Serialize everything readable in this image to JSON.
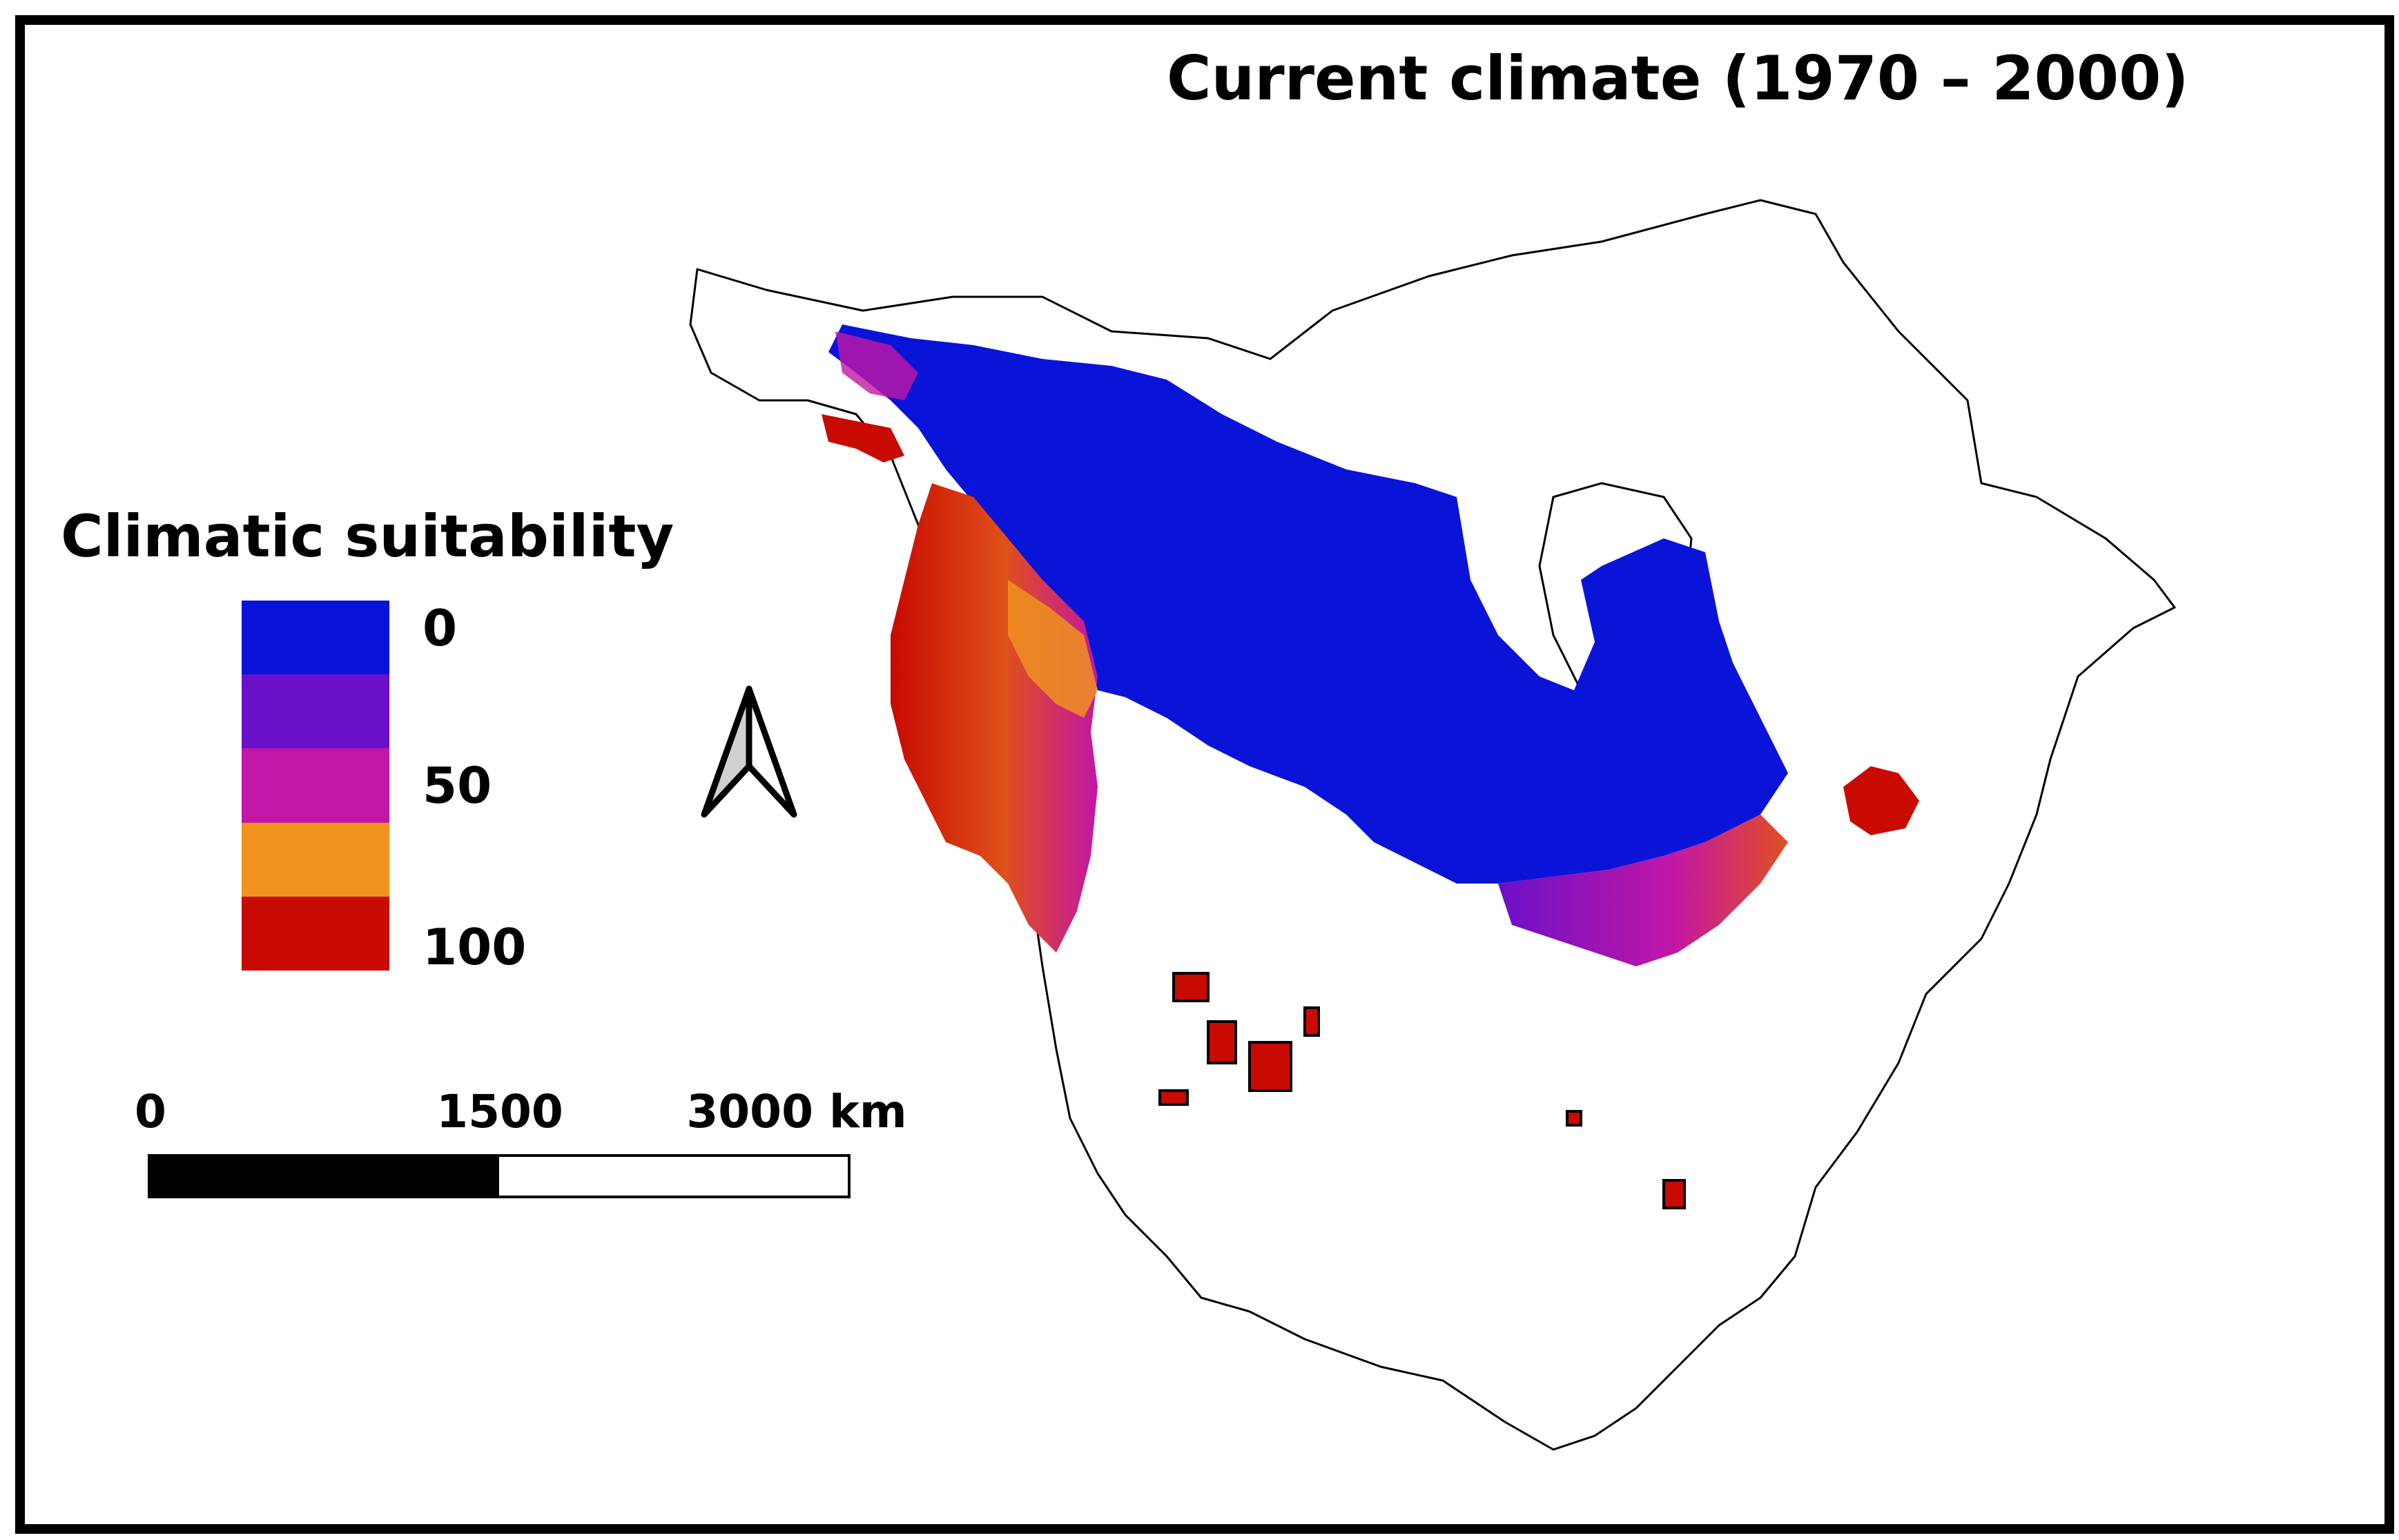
{
  "title": "Current climate (1970 – 2000)",
  "legend": {
    "title": "Climatic suitability",
    "classes": [
      {
        "color": "#0a14d8"
      },
      {
        "color": "#6a10c8"
      },
      {
        "color": "#c216a6"
      },
      {
        "color": "#f0921e"
      },
      {
        "color": "#c80a00"
      }
    ],
    "ticks": [
      {
        "label": "0",
        "value": 0
      },
      {
        "label": "50",
        "value": 50
      },
      {
        "label": "100",
        "value": 100
      }
    ]
  },
  "scale_bar": {
    "unit": "km",
    "labels": [
      "0",
      "1500",
      "3000 km"
    ],
    "values": [
      0,
      1500,
      3000
    ]
  },
  "north_arrow": {
    "icon": "north-arrow-icon"
  },
  "map": {
    "colors": {
      "outline": "#000000",
      "land": "#ffffff",
      "low": "#0a14d8",
      "mid": "#c216a6",
      "high": "#c80a00",
      "orange": "#f0921e"
    }
  }
}
